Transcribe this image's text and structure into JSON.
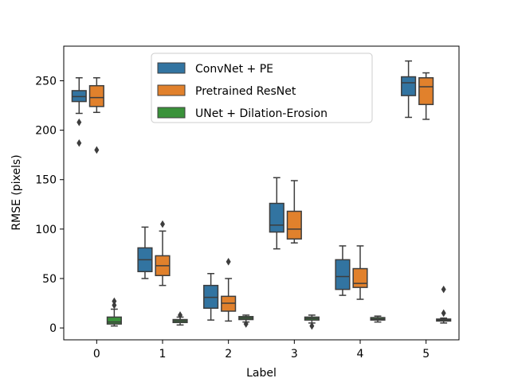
{
  "chart_data": {
    "type": "box",
    "xlabel": "Label",
    "ylabel": "RMSE (pixels)",
    "categories": [
      "0",
      "1",
      "2",
      "3",
      "4",
      "5"
    ],
    "ylim": [
      -12,
      285
    ],
    "yticks": [
      0,
      50,
      100,
      150,
      200,
      250
    ],
    "grid": false,
    "legend_position": "top-center",
    "series": [
      {
        "name": "ConvNet + PE",
        "color": "#3274a1",
        "boxes": [
          {
            "category": "0",
            "whisker_low": 217,
            "q1": 229,
            "median": 234,
            "q3": 240,
            "whisker_high": 253,
            "outliers": [
              208,
              187
            ]
          },
          {
            "category": "1",
            "whisker_low": 50,
            "q1": 57,
            "median": 69,
            "q3": 81,
            "whisker_high": 102,
            "outliers": []
          },
          {
            "category": "2",
            "whisker_low": 8,
            "q1": 20,
            "median": 31,
            "q3": 43,
            "whisker_high": 55,
            "outliers": []
          },
          {
            "category": "3",
            "whisker_low": 80,
            "q1": 97,
            "median": 104,
            "q3": 126,
            "whisker_high": 152,
            "outliers": []
          },
          {
            "category": "4",
            "whisker_low": 33,
            "q1": 39,
            "median": 52,
            "q3": 69,
            "whisker_high": 83,
            "outliers": []
          },
          {
            "category": "5",
            "whisker_low": 213,
            "q1": 235,
            "median": 248,
            "q3": 254,
            "whisker_high": 270,
            "outliers": []
          }
        ]
      },
      {
        "name": "Pretrained ResNet",
        "color": "#e1812c",
        "boxes": [
          {
            "category": "0",
            "whisker_low": 218,
            "q1": 224,
            "median": 233,
            "q3": 245,
            "whisker_high": 253,
            "outliers": [
              180
            ]
          },
          {
            "category": "1",
            "whisker_low": 43,
            "q1": 53,
            "median": 63,
            "q3": 73,
            "whisker_high": 98,
            "outliers": [
              105
            ]
          },
          {
            "category": "2",
            "whisker_low": 7,
            "q1": 17,
            "median": 25,
            "q3": 32,
            "whisker_high": 50,
            "outliers": [
              67
            ]
          },
          {
            "category": "3",
            "whisker_low": 86,
            "q1": 90,
            "median": 100,
            "q3": 118,
            "whisker_high": 149,
            "outliers": []
          },
          {
            "category": "4",
            "whisker_low": 29,
            "q1": 41,
            "median": 45,
            "q3": 60,
            "whisker_high": 83,
            "outliers": []
          },
          {
            "category": "5",
            "whisker_low": 211,
            "q1": 226,
            "median": 244,
            "q3": 253,
            "whisker_high": 258,
            "outliers": []
          }
        ]
      },
      {
        "name": "UNet + Dilation-Erosion",
        "color": "#3a923a",
        "boxes": [
          {
            "category": "0",
            "whisker_low": 2,
            "q1": 4,
            "median": 6,
            "q3": 11,
            "whisker_high": 19,
            "outliers": [
              23,
              27
            ]
          },
          {
            "category": "1",
            "whisker_low": 3,
            "q1": 5.5,
            "median": 7,
            "q3": 8.5,
            "whisker_high": 11,
            "outliers": [
              13
            ]
          },
          {
            "category": "2",
            "whisker_low": 6,
            "q1": 8.5,
            "median": 10,
            "q3": 11.5,
            "whisker_high": 13,
            "outliers": [
              4
            ]
          },
          {
            "category": "3",
            "whisker_low": 5,
            "q1": 8,
            "median": 9.5,
            "q3": 11,
            "whisker_high": 13,
            "outliers": [
              2
            ]
          },
          {
            "category": "4",
            "whisker_low": 6,
            "q1": 8,
            "median": 9,
            "q3": 10.5,
            "whisker_high": 12,
            "outliers": []
          },
          {
            "category": "5",
            "whisker_low": 5,
            "q1": 7,
            "median": 8,
            "q3": 9,
            "whisker_high": 10,
            "outliers": [
              15,
              39
            ]
          }
        ]
      }
    ]
  }
}
